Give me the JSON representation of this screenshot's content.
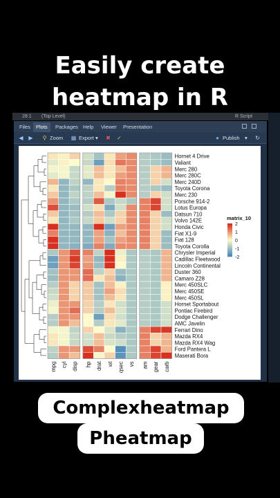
{
  "headline": {
    "line1": "Easily create",
    "line2": "heatmap in R"
  },
  "topstrip": {
    "left": "28:1",
    "scope": "(Top Level)",
    "right": "R Script"
  },
  "ide": {
    "tabs": [
      "Files",
      "Plots",
      "Packages",
      "Help",
      "Viewer",
      "Presentation"
    ],
    "active_tab": "Plots",
    "toolbar": {
      "zoom": "Zoom",
      "export": "Export",
      "publish": "Publish"
    }
  },
  "chart_data": {
    "type": "heatmap",
    "rows": [
      "Hornet 4 Drive",
      "Valiant",
      "Merc 280",
      "Merc 280C",
      "Merc 240D",
      "Toyota Corona",
      "Merc 230",
      "Porsche 914-2",
      "Lotus Europa",
      "Datsun 710",
      "Volvo 142E",
      "Honda Civic",
      "Fiat X1-9",
      "Fiat 128",
      "Toyota Corolla",
      "Chrysler Imperial",
      "Cadillac Fleetwood",
      "Lincoln Continental",
      "Duster 360",
      "Camaro Z28",
      "Merc 450SLC",
      "Merc 450SE",
      "Merc 450SL",
      "Hornet Sportabout",
      "Pontiac Firebird",
      "Dodge Challenger",
      "AMC Javelin",
      "Ferrari Dino",
      "Mazda RX4",
      "Mazda RX4 Wag",
      "Ford Pantera L",
      "Maserati Bora"
    ],
    "columns": [
      "mpg",
      "cyl",
      "disp",
      "hp",
      "drat",
      "wt",
      "qsec",
      "vs",
      "am",
      "gear",
      "carb"
    ],
    "column_groups": [
      [
        "mpg",
        "cyl",
        "disp"
      ],
      [
        "hp",
        "drat",
        "wt",
        "qsec",
        "vs"
      ],
      [
        "am",
        "gear",
        "carb"
      ]
    ],
    "values": [
      [
        0.2,
        0.1,
        0.4,
        -0.5,
        -1.0,
        0.2,
        0.9,
        1.1,
        -0.8,
        -0.9,
        -1.1
      ],
      [
        -0.3,
        0.1,
        0.0,
        -0.6,
        -1.6,
        0.3,
        1.3,
        1.1,
        -0.8,
        -0.9,
        -1.1
      ],
      [
        -0.1,
        -0.1,
        -0.6,
        -0.3,
        0.6,
        0.2,
        0.6,
        1.1,
        -0.8,
        0.4,
        0.7
      ],
      [
        -0.3,
        -0.1,
        -0.6,
        -0.3,
        0.6,
        0.2,
        0.9,
        1.1,
        -0.8,
        0.4,
        0.7
      ],
      [
        0.7,
        -1.2,
        -0.7,
        -1.2,
        0.2,
        0.0,
        1.2,
        1.1,
        -0.8,
        0.4,
        -0.5
      ],
      [
        0.2,
        -1.2,
        -0.9,
        -0.7,
        0.2,
        -0.8,
        1.2,
        1.1,
        -0.8,
        -0.9,
        -1.1
      ],
      [
        0.5,
        -1.2,
        -0.7,
        -0.7,
        0.6,
        -0.1,
        2.8,
        1.1,
        -0.8,
        0.4,
        -0.5
      ],
      [
        1.0,
        -1.2,
        -0.9,
        -0.8,
        1.6,
        -0.9,
        -0.6,
        -0.9,
        1.2,
        1.8,
        -0.5
      ],
      [
        1.7,
        -1.2,
        -1.1,
        -0.5,
        0.3,
        -1.4,
        -0.5,
        1.1,
        1.2,
        1.8,
        -0.5
      ],
      [
        0.5,
        -1.2,
        -1.0,
        -0.8,
        0.6,
        -0.9,
        0.4,
        1.1,
        1.2,
        0.4,
        -1.1
      ],
      [
        0.2,
        -1.2,
        -0.9,
        -0.6,
        0.5,
        -0.5,
        0.4,
        1.1,
        1.2,
        0.4,
        -0.5
      ],
      [
        2.0,
        -1.2,
        -1.2,
        -1.2,
        2.5,
        -1.6,
        0.9,
        1.1,
        1.2,
        0.4,
        -0.5
      ],
      [
        1.2,
        -1.2,
        -1.2,
        -1.2,
        0.9,
        -1.3,
        0.6,
        1.1,
        1.2,
        0.4,
        -1.1
      ],
      [
        2.0,
        -1.2,
        -1.2,
        -1.2,
        0.9,
        -1.0,
        0.9,
        1.1,
        1.2,
        0.4,
        -1.1
      ],
      [
        2.3,
        -1.2,
        -1.3,
        -1.4,
        1.2,
        -1.4,
        1.1,
        1.1,
        1.2,
        0.4,
        -1.1
      ],
      [
        -0.9,
        1.0,
        1.7,
        1.2,
        -0.7,
        2.2,
        -0.2,
        -0.9,
        -0.8,
        -0.9,
        0.7
      ],
      [
        -1.6,
        1.0,
        1.9,
        0.9,
        -1.2,
        2.1,
        0.1,
        -0.9,
        -0.8,
        -0.9,
        0.7
      ],
      [
        -1.6,
        1.0,
        1.8,
        1.0,
        -1.1,
        2.3,
        -0.0,
        -0.9,
        -0.8,
        -0.9,
        0.7
      ],
      [
        -1.0,
        1.0,
        1.0,
        1.4,
        -0.7,
        0.4,
        -1.1,
        -0.9,
        -0.8,
        -0.9,
        0.7
      ],
      [
        -1.1,
        1.0,
        1.0,
        1.4,
        0.2,
        0.6,
        -1.3,
        -0.9,
        -0.8,
        -0.9,
        0.7
      ],
      [
        -0.8,
        1.0,
        0.4,
        0.5,
        -1.0,
        0.6,
        0.1,
        -0.9,
        -0.8,
        -0.9,
        0.1
      ],
      [
        -0.6,
        1.0,
        0.4,
        0.5,
        -1.0,
        0.9,
        0.3,
        -0.9,
        -0.8,
        -0.9,
        0.1
      ],
      [
        -0.5,
        1.0,
        0.4,
        0.5,
        -1.0,
        0.6,
        0.2,
        -0.9,
        -0.8,
        -0.9,
        0.1
      ],
      [
        -0.2,
        1.0,
        1.0,
        0.4,
        -0.8,
        0.2,
        -0.5,
        -0.9,
        -0.8,
        -0.9,
        -0.5
      ],
      [
        -0.1,
        1.0,
        1.4,
        0.4,
        -0.8,
        0.6,
        -0.4,
        -0.9,
        -0.8,
        -0.9,
        -0.5
      ],
      [
        -0.8,
        1.0,
        1.0,
        0.0,
        -1.6,
        0.3,
        -0.5,
        -0.9,
        -0.8,
        -0.9,
        -0.5
      ],
      [
        -0.8,
        1.0,
        0.6,
        0.0,
        -0.8,
        0.2,
        -0.3,
        -0.9,
        -0.8,
        -0.9,
        -0.5
      ],
      [
        -0.1,
        -0.1,
        -0.7,
        0.4,
        0.0,
        -0.4,
        -1.3,
        -0.9,
        1.2,
        1.8,
        1.9
      ],
      [
        0.2,
        -0.1,
        -0.6,
        -0.5,
        0.6,
        -0.6,
        -0.8,
        -0.9,
        1.2,
        0.4,
        0.7
      ],
      [
        0.2,
        -0.1,
        -0.6,
        -0.5,
        0.6,
        -0.4,
        -0.5,
        -0.9,
        1.2,
        0.4,
        0.7
      ],
      [
        -0.7,
        1.0,
        1.0,
        1.7,
        1.2,
        -0.0,
        -1.9,
        -0.9,
        1.2,
        1.8,
        0.7
      ],
      [
        -0.8,
        1.0,
        0.6,
        2.7,
        -0.1,
        0.4,
        -1.8,
        -0.9,
        1.2,
        1.8,
        3.2
      ]
    ],
    "legend": {
      "title": "matrix_10",
      "ticks": [
        2,
        1,
        0,
        -1,
        -2
      ]
    },
    "colors": {
      "low": "#4a89b9",
      "mid": "#fdfbcb",
      "high": "#d7301f"
    },
    "dendrogram": "rows"
  },
  "captions": {
    "chip1": "Complexheatmap",
    "chip2": "Pheatmap"
  }
}
